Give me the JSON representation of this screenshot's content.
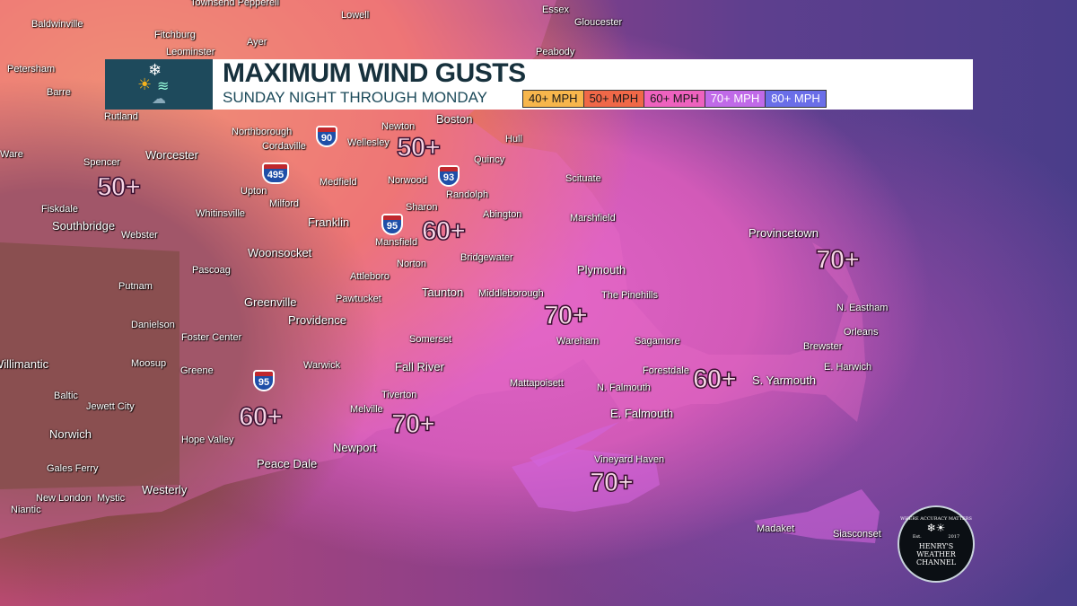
{
  "header": {
    "title": "MAXIMUM WIND GUSTS",
    "subtitle": "SUNDAY NIGHT THROUGH MONDAY",
    "icon": "weather-icon (snowflake, sun, wind, rain cloud)"
  },
  "legend": [
    {
      "label": "40+ MPH",
      "color": "#f7b64c"
    },
    {
      "label": "50+ MPH",
      "color": "#f06848"
    },
    {
      "label": "60+ MPH",
      "color": "#ee62be"
    },
    {
      "label": "70+ MPH",
      "color": "#c06ae8"
    },
    {
      "label": "80+ MPH",
      "color": "#6a6ee8"
    }
  ],
  "gust_labels": [
    "50+",
    "50+",
    "60+",
    "70+",
    "70+",
    "60+",
    "60+",
    "70+",
    "70+"
  ],
  "highways": [
    "90",
    "495",
    "93",
    "95",
    "95"
  ],
  "cities": [
    "Townsend Pepperell",
    "Lowell",
    "Essex",
    "Gloucester",
    "Baldwinville",
    "Fitchburg",
    "Ayer",
    "Leominster",
    "Peabody",
    "Petersham",
    "Barre",
    "Rutland",
    "Newton",
    "Boston",
    "Northborough",
    "Cordaville",
    "Wellesley",
    "Hull",
    "Quincy",
    "Ware",
    "Spencer",
    "Worcester",
    "Medfield",
    "Norwood",
    "Randolph",
    "Scituate",
    "Upton",
    "Milford",
    "Fiskdale",
    "Whitinsville",
    "Franklin",
    "Sharon",
    "Abington",
    "Marshfield",
    "Southbridge",
    "Webster",
    "Mansfield",
    "Bridgewater",
    "Woonsocket",
    "Provincetown",
    "Putnam",
    "Pascoag",
    "Attleboro",
    "Norton",
    "Plymouth",
    "Taunton",
    "Middleborough",
    "The Pinehills",
    "Greenville",
    "Pawtucket",
    "Danielson",
    "Providence",
    "N. Eastham",
    "Orleans",
    "Willimantic",
    "Foster Center",
    "Somerset",
    "Wareham",
    "Sagamore",
    "Brewster",
    "Moosup",
    "Greene",
    "Warwick",
    "Fall River",
    "Forestdale",
    "E. Harwich",
    "Baltic",
    "Jewett City",
    "Tiverton",
    "Mattapoisett",
    "N. Falmouth",
    "S. Yarmouth",
    "Norwich",
    "Melville",
    "E. Falmouth",
    "Hope Valley",
    "Newport",
    "Peace Dale",
    "Vineyard Haven",
    "Gales Ferry",
    "Westerly",
    "New London",
    "Mystic",
    "Niantic",
    "Madaket",
    "Siasconset"
  ],
  "logo": {
    "motto": "WHERE ACCURACY MATTERS",
    "est": "Est.",
    "year": "2017",
    "name1": "HENRY'S WEATHER",
    "name2": "CHANNEL"
  }
}
